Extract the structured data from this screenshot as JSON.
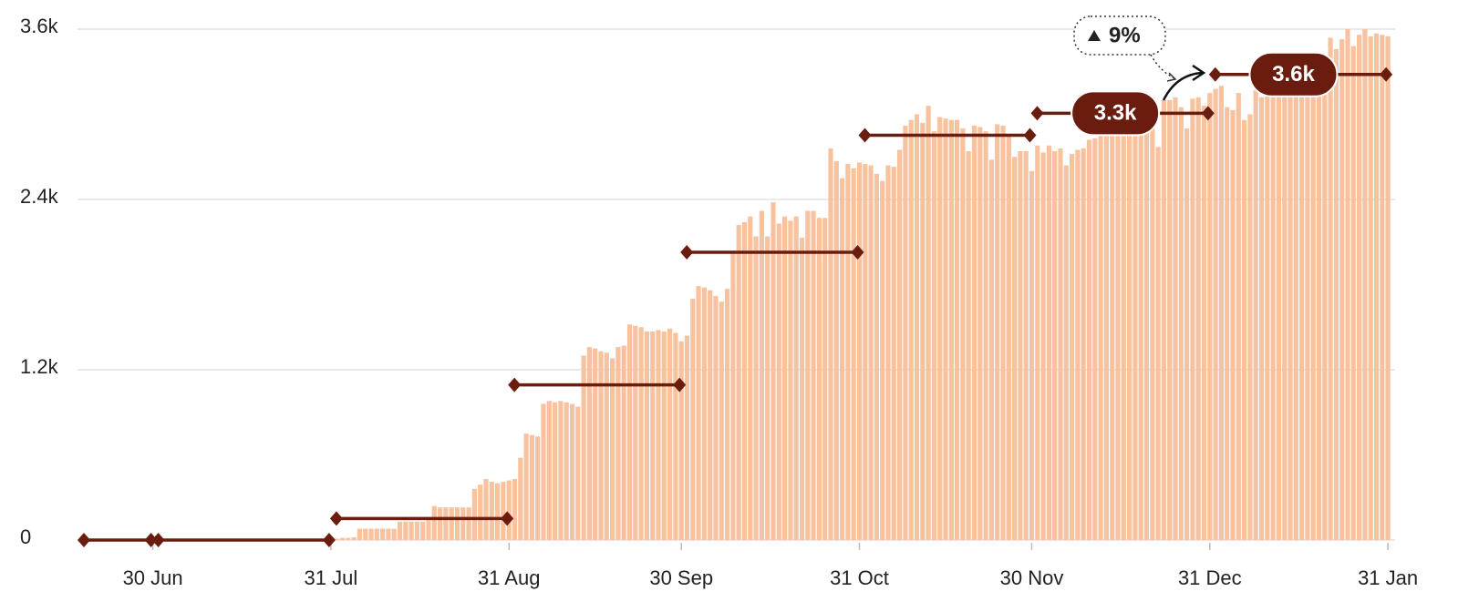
{
  "chart_data": {
    "type": "bar",
    "categories": [
      null,
      null,
      null,
      null,
      null,
      null,
      null,
      null,
      null,
      null,
      null,
      null,
      "30 Jun",
      null,
      null,
      null,
      null,
      null,
      null,
      null,
      null,
      null,
      null,
      null,
      null,
      null,
      null,
      null,
      null,
      null,
      null,
      null,
      null,
      null,
      null,
      null,
      null,
      null,
      null,
      null,
      null,
      null,
      null,
      "31 Jul",
      null,
      null,
      null,
      null,
      null,
      null,
      null,
      null,
      null,
      null,
      null,
      null,
      null,
      null,
      null,
      null,
      null,
      null,
      null,
      null,
      null,
      null,
      null,
      null,
      null,
      null,
      null,
      null,
      null,
      null,
      "31 Aug",
      null,
      null,
      null,
      null,
      null,
      null,
      null,
      null,
      null,
      null,
      null,
      null,
      null,
      null,
      null,
      null,
      null,
      null,
      null,
      null,
      null,
      null,
      null,
      null,
      null,
      null,
      null,
      null,
      null,
      "30 Sep",
      null,
      null,
      null,
      null,
      null,
      null,
      null,
      null,
      null,
      null,
      null,
      null,
      null,
      null,
      null,
      null,
      null,
      null,
      null,
      null,
      null,
      null,
      null,
      null,
      null,
      null,
      null,
      null,
      null,
      null,
      "31 Oct",
      null,
      null,
      null,
      null,
      null,
      null,
      null,
      null,
      null,
      null,
      null,
      null,
      null,
      null,
      null,
      null,
      null,
      null,
      null,
      null,
      null,
      null,
      null,
      null,
      null,
      null,
      null,
      null,
      null,
      "30 Nov",
      null,
      null,
      null,
      null,
      null,
      null,
      null,
      null,
      null,
      null,
      null,
      null,
      null,
      null,
      null,
      null,
      null,
      null,
      null,
      null,
      null,
      null,
      null,
      null,
      null,
      null,
      null,
      null,
      null,
      null,
      "31 Dec",
      null,
      null,
      null,
      null,
      null,
      null,
      null,
      null,
      null,
      null,
      null,
      null,
      null,
      null,
      null,
      null,
      null,
      null,
      null,
      null,
      null,
      null,
      null,
      null,
      null,
      null,
      null,
      null,
      null,
      null,
      "31 Jan"
    ],
    "values": [
      0,
      0,
      0,
      0,
      0,
      0,
      0,
      0,
      0,
      0,
      0,
      0,
      0,
      0,
      0,
      0,
      0,
      0,
      0,
      0,
      0,
      0,
      0,
      0,
      0,
      0,
      0,
      0,
      0,
      0,
      0,
      0,
      0,
      0,
      0,
      0,
      0,
      0,
      0,
      0,
      0,
      0,
      0,
      0,
      10,
      15,
      15,
      20,
      80,
      80,
      80,
      80,
      80,
      80,
      80,
      130,
      130,
      130,
      130,
      130,
      140,
      240,
      230,
      230,
      230,
      230,
      230,
      230,
      360,
      390,
      430,
      410,
      400,
      410,
      420,
      430,
      580,
      750,
      740,
      730,
      960,
      980,
      970,
      980,
      970,
      960,
      940,
      1300,
      1360,
      1350,
      1330,
      1320,
      1280,
      1360,
      1370,
      1520,
      1510,
      1500,
      1470,
      1470,
      1480,
      1470,
      1490,
      1460,
      1400,
      1440,
      1700,
      1790,
      1780,
      1760,
      1720,
      1680,
      1770,
      2030,
      2220,
      2240,
      2280,
      2140,
      2320,
      2140,
      2380,
      2230,
      2280,
      2250,
      2280,
      2130,
      2320,
      2320,
      2270,
      2270,
      2760,
      2670,
      2550,
      2650,
      2620,
      2660,
      2650,
      2640,
      2580,
      2530,
      2640,
      2630,
      2750,
      2920,
      2960,
      3000,
      2940,
      3060,
      2880,
      2980,
      2970,
      2960,
      2960,
      2900,
      2740,
      2920,
      2910,
      2880,
      2680,
      2930,
      2920,
      2860,
      2700,
      2740,
      2740,
      2600,
      2780,
      2730,
      2780,
      2740,
      2760,
      2640,
      2720,
      2750,
      2760,
      2820,
      2830,
      2870,
      2900,
      2940,
      3000,
      2980,
      3040,
      3060,
      3000,
      3050,
      3120,
      2770,
      3100,
      3100,
      3120,
      3050,
      2900,
      3110,
      3120,
      3060,
      3150,
      3180,
      3200,
      3050,
      3030,
      3150,
      2960,
      3000,
      3170,
      3120,
      3150,
      3300,
      3320,
      3420,
      3340,
      3400,
      3380,
      3430,
      3430,
      3380,
      3420,
      3540,
      3460,
      3530,
      3600,
      3480,
      3560,
      3600,
      3550,
      3570,
      3560,
      3550
    ],
    "color": "#f9c29f",
    "ylim": [
      0,
      3600
    ],
    "yticks": [
      0,
      {
        "value": 1200,
        "label": "1.2k"
      },
      {
        "value": 2400,
        "label": "2.4k"
      },
      {
        "value": 3600,
        "label": "3.6k"
      }
    ],
    "grid": true,
    "monthly": {
      "color": "#6a1c0e",
      "axis": "y2",
      "values": [
        0,
        0,
        166,
        1200,
        2225,
        3130,
        3300,
        3600
      ],
      "value_labels": [
        null,
        null,
        null,
        null,
        null,
        null,
        "3.3k",
        "3.6k"
      ]
    },
    "y2lim": [
      0,
      3950
    ],
    "annotation": "9%"
  }
}
